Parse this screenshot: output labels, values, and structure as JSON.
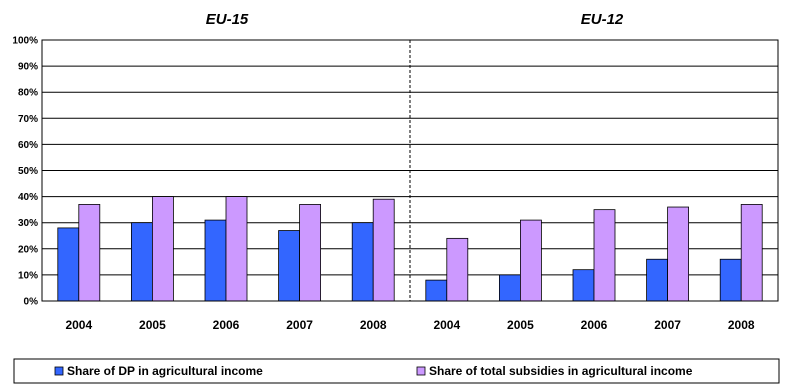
{
  "chart_data": {
    "type": "bar",
    "group_titles": [
      "EU-15",
      "EU-12"
    ],
    "categories": [
      "2004",
      "2005",
      "2006",
      "2007",
      "2008",
      "2004",
      "2005",
      "2006",
      "2007",
      "2008"
    ],
    "group_of_category": [
      0,
      0,
      0,
      0,
      0,
      1,
      1,
      1,
      1,
      1
    ],
    "series": [
      {
        "name": "Share of DP in agricultural income",
        "color": "#3366ff",
        "values": [
          28,
          30,
          31,
          27,
          30,
          8,
          10,
          12,
          16,
          16
        ]
      },
      {
        "name": "Share of total subsidies in agricultural income",
        "color": "#cc99ff",
        "values": [
          37,
          40,
          40,
          37,
          39,
          24,
          31,
          35,
          36,
          37
        ]
      }
    ],
    "ylim": [
      0,
      100
    ],
    "yticks": [
      "0%",
      "10%",
      "20%",
      "30%",
      "40%",
      "50%",
      "60%",
      "70%",
      "80%",
      "90%",
      "100%"
    ],
    "grid": true,
    "legend_position": "bottom",
    "group_separator": "dashed"
  }
}
